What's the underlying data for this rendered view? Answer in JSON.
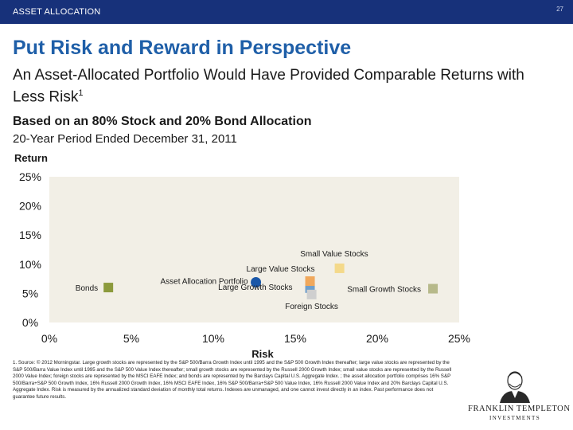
{
  "header": {
    "section": "ASSET ALLOCATION",
    "page_number": "27"
  },
  "title": "Put Risk and Reward in Perspective",
  "subtitle": "An Asset-Allocated Portfolio Would Have Provided Comparable Returns with Less Risk",
  "subtitle_footnote_ref": "1",
  "chart_heading": "Based on an 80% Stock and 20% Bond Allocation",
  "chart_subheading": "20-Year Period Ended December 31, 2011",
  "chart_data": {
    "type": "scatter",
    "title": "Based on an 80% Stock and 20% Bond Allocation",
    "subtitle": "20-Year Period Ended December 31, 2011",
    "xlabel": "Risk",
    "ylabel": "Return",
    "xlim": [
      0,
      25
    ],
    "ylim": [
      0,
      25
    ],
    "x_ticks": [
      "0%",
      "5%",
      "10%",
      "15%",
      "20%",
      "25%"
    ],
    "y_ticks": [
      "0%",
      "5%",
      "10%",
      "15%",
      "20%",
      "25%"
    ],
    "grid": false,
    "background": "#f2efe6",
    "points": [
      {
        "name": "Bonds",
        "x": 3.6,
        "y": 6.0,
        "color": "#8c9a3c",
        "shape": "square"
      },
      {
        "name": "Asset Allocation Portfolio",
        "x": 12.6,
        "y": 6.9,
        "color": "#1a57a8",
        "shape": "circle"
      },
      {
        "name": "Large Growth Stocks",
        "x": 15.9,
        "y": 5.9,
        "color": "#6f9fcc",
        "shape": "square"
      },
      {
        "name": "Large Value Stocks",
        "x": 15.9,
        "y": 7.1,
        "color": "#f0a85c",
        "shape": "square"
      },
      {
        "name": "Small Value Stocks",
        "x": 17.7,
        "y": 9.3,
        "color": "#f4d98a",
        "shape": "square"
      },
      {
        "name": "Small Growth Stocks",
        "x": 23.4,
        "y": 5.8,
        "color": "#b7b98a",
        "shape": "square"
      },
      {
        "name": "Foreign Stocks",
        "x": 16.0,
        "y": 4.8,
        "color": "#cfcfcf",
        "shape": "square"
      }
    ]
  },
  "footnote": "1. Source: © 2012 Morningstar. Large growth stocks are represented by the S&P 500/Barra Growth Index until 1995 and the S&P 500 Growth Index thereafter; large value stocks are represented by the S&P 500/Barra Value Index until 1995 and the S&P 500 Value Index thereafter; small growth stocks are represented by the Russell 2000 Growth Index; small value stocks are represented by the Russell 2000 Value Index; foreign stocks are represented by the MSCI EAFE Index; and bonds are represented by the Barclays Capital U.S. Aggregate Index. ; the asset allocation portfolio comprises 16% S&P 500/Barra+S&P 500 Growth Index, 16% Russell 2000 Growth Index, 16% MSCI EAFE Index, 16% S&P 500/Barra+S&P 500 Value Index, 16% Russell 2000 Value Index and 20% Barclays Capital U.S. Aggregate Index. Risk is measured by the annualized standard deviation of monthly total returns. Indexes are unmanaged, and one cannot invest directly in an index. Past performance does not guarantee future results.",
  "logo": {
    "name": "FRANKLIN TEMPLETON",
    "tagline": "INVESTMENTS"
  }
}
